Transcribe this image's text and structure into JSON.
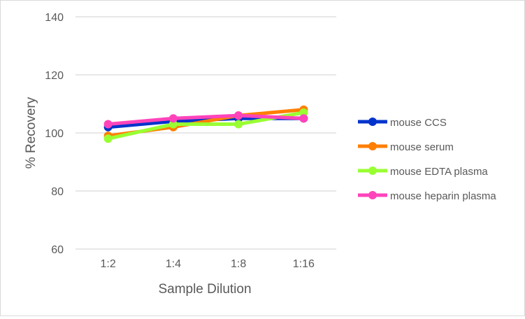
{
  "chart_data": {
    "type": "line",
    "title": "",
    "xlabel": "Sample Dilution",
    "ylabel": "% Recovery",
    "categories": [
      "1:2",
      "1:4",
      "1:8",
      "1:16"
    ],
    "ylim": [
      60,
      140
    ],
    "yticks": [
      60,
      80,
      100,
      120,
      140
    ],
    "grid": true,
    "legend": "right",
    "series": [
      {
        "name": "mouse CCS",
        "color": "#0033cc",
        "values": [
          102,
          104,
          105,
          105
        ]
      },
      {
        "name": "mouse serum",
        "color": "#ff7f00",
        "values": [
          99,
          102,
          106,
          108
        ]
      },
      {
        "name": "mouse EDTA plasma",
        "color": "#99ff33",
        "values": [
          98,
          103,
          103,
          107
        ]
      },
      {
        "name": "mouse heparin plasma",
        "color": "#ff44bb",
        "values": [
          103,
          105,
          106,
          105
        ]
      }
    ]
  }
}
